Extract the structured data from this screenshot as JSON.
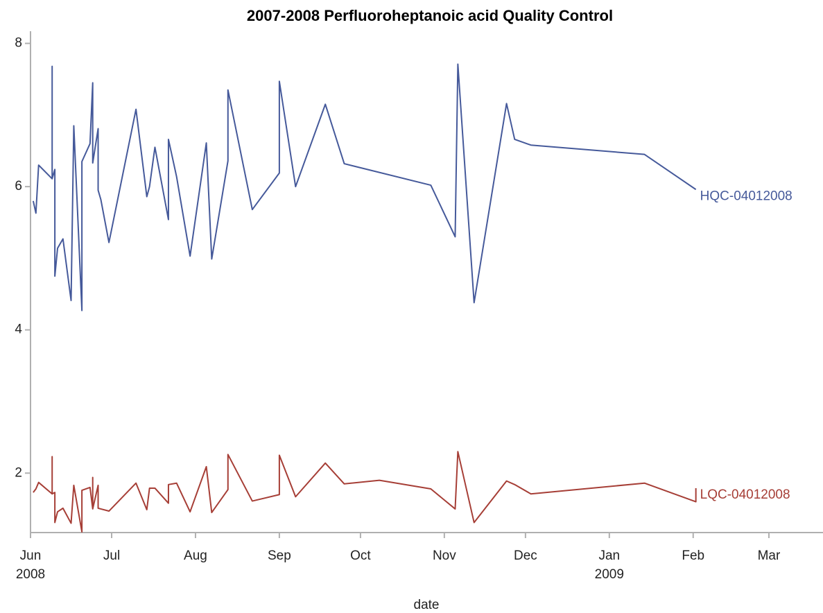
{
  "chart_data": {
    "type": "line",
    "title": "2007-2008 Perfluoroheptanoic acid Quality Control",
    "x_label": "date",
    "xlim": [
      "2008-06-01",
      "2009-03-21"
    ],
    "xticks": [
      {
        "value": "2008-06-01",
        "label": "Jun"
      },
      {
        "value": "2008-07-01",
        "label": "Jul"
      },
      {
        "value": "2008-08-01",
        "label": "Aug"
      },
      {
        "value": "2008-09-01",
        "label": "Sep"
      },
      {
        "value": "2008-10-01",
        "label": "Oct"
      },
      {
        "value": "2008-11-01",
        "label": "Nov"
      },
      {
        "value": "2008-12-01",
        "label": "Dec"
      },
      {
        "value": "2009-01-01",
        "label": "Jan"
      },
      {
        "value": "2009-02-01",
        "label": "Feb"
      },
      {
        "value": "2009-03-01",
        "label": "Mar"
      }
    ],
    "xtick_years": [
      {
        "value": "2008-06-01",
        "label": "2008"
      },
      {
        "value": "2009-01-01",
        "label": "2009"
      }
    ],
    "ylim": [
      1.17,
      8.17
    ],
    "yticks": [
      2,
      4,
      6,
      8
    ],
    "grid": false,
    "series": [
      {
        "name": "HQC-04012008",
        "color": "#45599a",
        "x": [
          "2008-06-02",
          "2008-06-03",
          "2008-06-04",
          "2008-06-09",
          "2008-06-09",
          "2008-06-09",
          "2008-06-10",
          "2008-06-10",
          "2008-06-11",
          "2008-06-13",
          "2008-06-16",
          "2008-06-17",
          "2008-06-20",
          "2008-06-20",
          "2008-06-23",
          "2008-06-24",
          "2008-06-24",
          "2008-06-26",
          "2008-06-26",
          "2008-06-27",
          "2008-06-30",
          "2008-07-10",
          "2008-07-14",
          "2008-07-15",
          "2008-07-17",
          "2008-07-22",
          "2008-07-22",
          "2008-07-25",
          "2008-07-30",
          "2008-08-05",
          "2008-08-07",
          "2008-08-13",
          "2008-08-13",
          "2008-08-22",
          "2008-09-01",
          "2008-09-01",
          "2008-09-07",
          "2008-09-18",
          "2008-09-25",
          "2008-10-27",
          "2008-11-05",
          "2008-11-06",
          "2008-11-12",
          "2008-11-24",
          "2008-11-27",
          "2008-12-03",
          "2009-01-14",
          "2009-02-02"
        ],
        "values": [
          5.8,
          5.63,
          6.3,
          6.11,
          7.68,
          6.11,
          6.24,
          4.75,
          5.14,
          5.27,
          4.41,
          6.85,
          4.27,
          6.35,
          6.6,
          7.45,
          6.33,
          6.81,
          5.95,
          5.82,
          5.22,
          7.08,
          5.86,
          6.0,
          6.55,
          5.54,
          6.66,
          6.14,
          5.03,
          6.61,
          4.99,
          6.36,
          7.35,
          5.68,
          6.19,
          7.47,
          6.0,
          7.15,
          6.32,
          6.02,
          5.3,
          7.71,
          4.38,
          7.16,
          6.66,
          6.58,
          6.45,
          5.96
        ]
      },
      {
        "name": "LQC-04012008",
        "color": "#a63e36",
        "x": [
          "2008-06-02",
          "2008-06-03",
          "2008-06-04",
          "2008-06-09",
          "2008-06-09",
          "2008-06-09",
          "2008-06-10",
          "2008-06-10",
          "2008-06-11",
          "2008-06-13",
          "2008-06-16",
          "2008-06-17",
          "2008-06-20",
          "2008-06-20",
          "2008-06-23",
          "2008-06-24",
          "2008-06-24",
          "2008-06-24",
          "2008-06-26",
          "2008-06-26",
          "2008-06-27",
          "2008-06-30",
          "2008-07-10",
          "2008-07-14",
          "2008-07-15",
          "2008-07-17",
          "2008-07-22",
          "2008-07-22",
          "2008-07-25",
          "2008-07-30",
          "2008-08-05",
          "2008-08-07",
          "2008-08-13",
          "2008-08-13",
          "2008-08-22",
          "2008-09-01",
          "2008-09-01",
          "2008-09-07",
          "2008-09-18",
          "2008-09-25",
          "2008-10-08",
          "2008-10-27",
          "2008-11-05",
          "2008-11-06",
          "2008-11-12",
          "2008-11-24",
          "2008-11-27",
          "2008-12-03",
          "2009-01-14",
          "2009-02-02",
          "2009-02-02"
        ],
        "values": [
          1.73,
          1.78,
          1.87,
          1.71,
          2.23,
          1.71,
          1.73,
          1.31,
          1.46,
          1.51,
          1.3,
          1.83,
          1.18,
          1.76,
          1.8,
          1.5,
          1.94,
          1.5,
          1.83,
          1.51,
          1.5,
          1.47,
          1.86,
          1.49,
          1.79,
          1.79,
          1.58,
          1.84,
          1.86,
          1.46,
          2.09,
          1.45,
          1.77,
          2.26,
          1.61,
          1.7,
          2.25,
          1.67,
          2.14,
          1.85,
          1.9,
          1.78,
          1.5,
          2.3,
          1.31,
          1.89,
          1.84,
          1.71,
          1.86,
          1.6,
          1.79
        ]
      }
    ]
  }
}
